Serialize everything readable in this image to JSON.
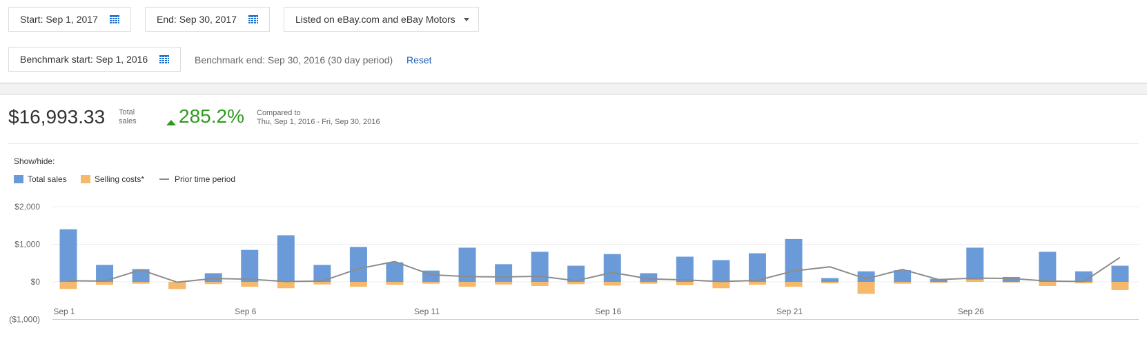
{
  "filters": {
    "start_label": "Start: Sep 1, 2017",
    "end_label": "End: Sep 30, 2017",
    "listing_label": "Listed on eBay.com and eBay Motors",
    "benchmark_start_label": "Benchmark start: Sep 1, 2016",
    "benchmark_end_text": "Benchmark end: Sep 30, 2016 (30 day period)",
    "reset_label": "Reset"
  },
  "summary": {
    "total_value": "$16,993.33",
    "total_label": "Total sales",
    "change_pct": "285.2%",
    "compared_label": "Compared to",
    "compared_range": "Thu, Sep 1, 2016 - Fri, Sep 30, 2016",
    "change_color": "#2f9a1f"
  },
  "legend": {
    "title": "Show/hide:",
    "items": [
      {
        "label": "Total sales",
        "color": "#6a9bd8",
        "kind": "swatch"
      },
      {
        "label": "Selling costs*",
        "color": "#f6b96b",
        "kind": "swatch"
      },
      {
        "label": "Prior time period",
        "color": "#8c8c8c",
        "kind": "line"
      }
    ]
  },
  "chart_data": {
    "type": "bar",
    "categories": [
      "Sep 1",
      "Sep 2",
      "Sep 3",
      "Sep 4",
      "Sep 5",
      "Sep 6",
      "Sep 7",
      "Sep 8",
      "Sep 9",
      "Sep 10",
      "Sep 11",
      "Sep 12",
      "Sep 13",
      "Sep 14",
      "Sep 15",
      "Sep 16",
      "Sep 17",
      "Sep 18",
      "Sep 19",
      "Sep 20",
      "Sep 21",
      "Sep 22",
      "Sep 23",
      "Sep 24",
      "Sep 25",
      "Sep 26",
      "Sep 27",
      "Sep 28",
      "Sep 29",
      "Sep 30"
    ],
    "x_tick_labels": [
      "Sep 1",
      "Sep 6",
      "Sep 11",
      "Sep 16",
      "Sep 21",
      "Sep 26"
    ],
    "x_tick_indices": [
      0,
      5,
      10,
      15,
      20,
      25
    ],
    "y_tick_labels": [
      "$2,000",
      "$1,000",
      "$0",
      "($1,000)"
    ],
    "y_tick_values": [
      2000,
      1000,
      0,
      -1000
    ],
    "ylim": [
      -1000,
      2000
    ],
    "grid": true,
    "series": [
      {
        "name": "Total sales",
        "type": "bar",
        "color": "#6a9bd8",
        "values": [
          1400,
          450,
          340,
          -190,
          230,
          850,
          1240,
          450,
          930,
          520,
          300,
          910,
          470,
          800,
          430,
          740,
          230,
          670,
          580,
          760,
          1140,
          100,
          280,
          310,
          80,
          910,
          130,
          800,
          280,
          430
        ]
      },
      {
        "name": "Selling costs*",
        "type": "bar",
        "color": "#f6b96b",
        "values": [
          -190,
          -80,
          -50,
          -190,
          -60,
          -130,
          -170,
          -70,
          -130,
          -80,
          -50,
          -130,
          -70,
          -110,
          -60,
          -100,
          -50,
          -90,
          -170,
          -80,
          -130,
          -40,
          -320,
          -50,
          -30,
          60,
          -20,
          -110,
          -40,
          -220
        ]
      },
      {
        "name": "Prior time period",
        "type": "line",
        "color": "#8c8c8c",
        "values": [
          30,
          20,
          320,
          -10,
          90,
          70,
          10,
          20,
          350,
          540,
          190,
          140,
          130,
          150,
          30,
          250,
          80,
          50,
          10,
          40,
          290,
          400,
          80,
          330,
          60,
          100,
          90,
          20,
          10,
          650
        ]
      }
    ]
  }
}
